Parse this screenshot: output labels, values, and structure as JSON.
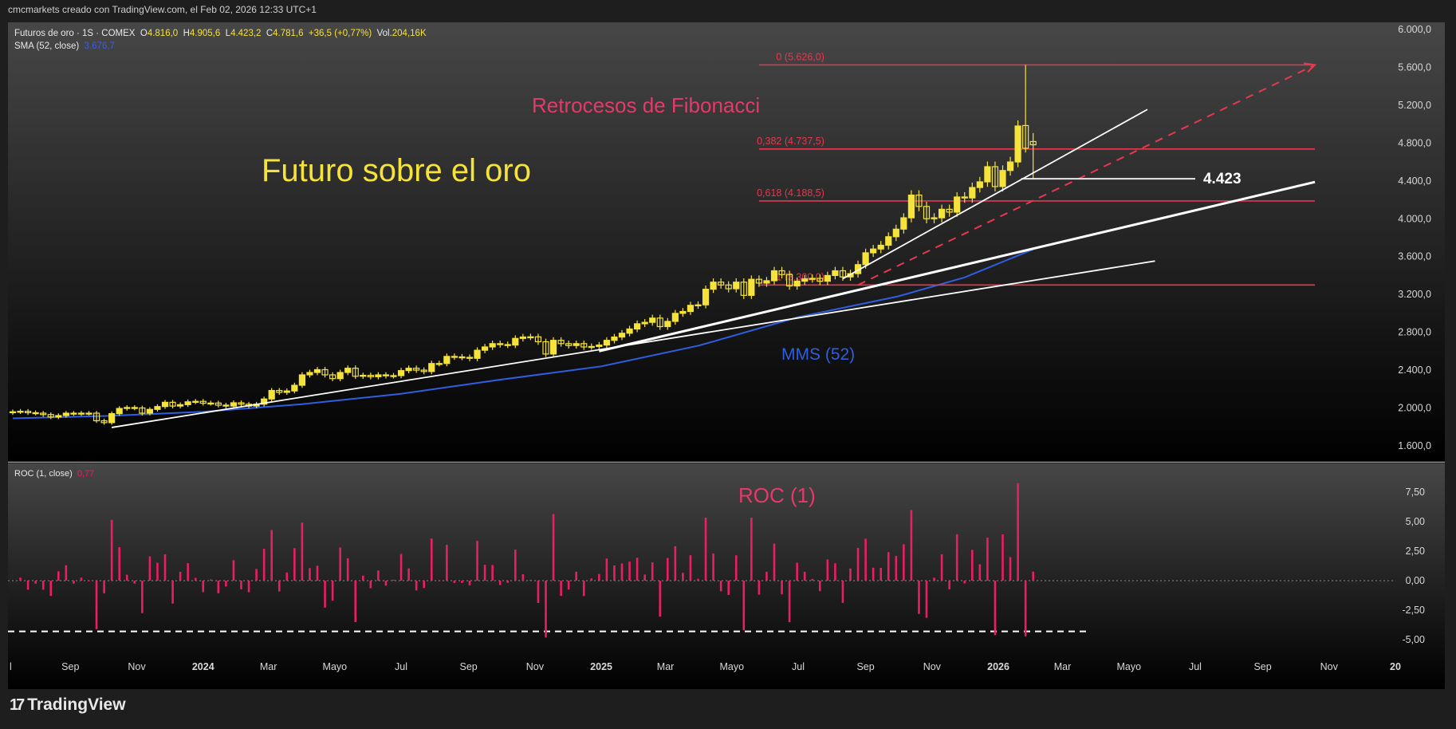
{
  "header": {
    "caption": "cmcmarkets creado con TradingView.com, el Feb 02, 2026 12:33 UTC+1"
  },
  "legend": {
    "symbol": "Futuros de oro · 1S · COMEX",
    "o_label": "O",
    "o": "4.816,0",
    "h_label": "H",
    "h": "4.905,6",
    "l_label": "L",
    "l": "4.423,2",
    "c_label": "C",
    "c": "4.781,6",
    "change": "+36,5 (+0,77%)",
    "vol_label": "Vol.",
    "vol": "204,16K",
    "sma_label": "SMA (52, close)",
    "sma_value": "3.676,7"
  },
  "roc_legend": {
    "label": "ROC (1, close)",
    "value": "0,77"
  },
  "footer": {
    "brand": "TradingView",
    "logo": "TV"
  },
  "colors": {
    "candle": "#f5e23a",
    "fib": "#e5394f",
    "sma": "#2f5fe0",
    "roc": "#e91e63",
    "trend": "#ffffff",
    "axis_text": "#d8d8d8"
  },
  "chart_data": [
    {
      "type": "candlestick",
      "title": "Futuro sobre el oro",
      "yticks": [
        "6.000,0",
        "5.600,0",
        "5.200,0",
        "4.800,0",
        "4.400,0",
        "4.000,0",
        "3.600,0",
        "3.200,0",
        "2.800,0",
        "2.400,0",
        "2.000,0",
        "1.600,0"
      ],
      "ytick_values": [
        6000,
        5600,
        5200,
        4800,
        4400,
        4000,
        3600,
        3200,
        2800,
        2400,
        2000,
        1600
      ],
      "ylim": [
        1600,
        6000
      ],
      "xticks": [
        [
          "l",
          "2023-07-01"
        ],
        [
          "Sep",
          "2023-09-01"
        ],
        [
          "Nov",
          "2023-11-01"
        ],
        [
          "2024",
          "2024-01-01"
        ],
        [
          "Mar",
          "2024-03-01"
        ],
        [
          "Mayo",
          "2024-05-01"
        ],
        [
          "Jul",
          "2024-07-01"
        ],
        [
          "Sep",
          "2024-09-01"
        ],
        [
          "Nov",
          "2024-11-01"
        ],
        [
          "2025",
          "2025-01-01"
        ],
        [
          "Mar",
          "2025-03-01"
        ],
        [
          "Mayo",
          "2025-05-01"
        ],
        [
          "Jul",
          "2025-07-01"
        ],
        [
          "Sep",
          "2025-09-01"
        ],
        [
          "Nov",
          "2025-11-01"
        ],
        [
          "2026",
          "2026-01-01"
        ],
        [
          "Mar",
          "2026-03-01"
        ],
        [
          "Mayo",
          "2026-05-01"
        ],
        [
          "Jul",
          "2026-07-01"
        ],
        [
          "Sep",
          "2026-09-01"
        ],
        [
          "Nov",
          "2026-11-01"
        ],
        [
          "20",
          "2027-01-01"
        ]
      ],
      "weekly_close": [
        [
          "2023-07-10",
          1960
        ],
        [
          "2023-07-17",
          1965
        ],
        [
          "2023-07-24",
          1950
        ],
        [
          "2023-07-31",
          1945
        ],
        [
          "2023-08-07",
          1930
        ],
        [
          "2023-08-14",
          1905
        ],
        [
          "2023-08-21",
          1920
        ],
        [
          "2023-08-28",
          1945
        ],
        [
          "2023-09-04",
          1940
        ],
        [
          "2023-09-11",
          1945
        ],
        [
          "2023-09-18",
          1945
        ],
        [
          "2023-09-25",
          1865
        ],
        [
          "2023-10-02",
          1845
        ],
        [
          "2023-10-09",
          1940
        ],
        [
          "2023-10-16",
          1995
        ],
        [
          "2023-10-23",
          2005
        ],
        [
          "2023-10-30",
          2000
        ],
        [
          "2023-11-06",
          1945
        ],
        [
          "2023-11-13",
          1985
        ],
        [
          "2023-11-20",
          2015
        ],
        [
          "2023-11-27",
          2060
        ],
        [
          "2023-12-04",
          2020
        ],
        [
          "2023-12-11",
          2035
        ],
        [
          "2023-12-18",
          2065
        ],
        [
          "2023-12-25",
          2070
        ],
        [
          "2024-01-01",
          2050
        ],
        [
          "2024-01-08",
          2052
        ],
        [
          "2024-01-15",
          2030
        ],
        [
          "2024-01-22",
          2020
        ],
        [
          "2024-01-29",
          2055
        ],
        [
          "2024-02-05",
          2040
        ],
        [
          "2024-02-12",
          2020
        ],
        [
          "2024-02-19",
          2040
        ],
        [
          "2024-02-26",
          2095
        ],
        [
          "2024-03-04",
          2185
        ],
        [
          "2024-03-11",
          2165
        ],
        [
          "2024-03-18",
          2180
        ],
        [
          "2024-03-25",
          2240
        ],
        [
          "2024-04-01",
          2350
        ],
        [
          "2024-04-08",
          2375
        ],
        [
          "2024-04-15",
          2405
        ],
        [
          "2024-04-22",
          2350
        ],
        [
          "2024-04-29",
          2310
        ],
        [
          "2024-05-06",
          2375
        ],
        [
          "2024-05-13",
          2420
        ],
        [
          "2024-05-20",
          2335
        ],
        [
          "2024-05-27",
          2345
        ],
        [
          "2024-06-03",
          2330
        ],
        [
          "2024-06-10",
          2350
        ],
        [
          "2024-06-17",
          2340
        ],
        [
          "2024-06-24",
          2342
        ],
        [
          "2024-07-01",
          2395
        ],
        [
          "2024-07-08",
          2420
        ],
        [
          "2024-07-15",
          2400
        ],
        [
          "2024-07-22",
          2385
        ],
        [
          "2024-07-29",
          2470
        ],
        [
          "2024-08-05",
          2470
        ],
        [
          "2024-08-12",
          2545
        ],
        [
          "2024-08-19",
          2540
        ],
        [
          "2024-08-26",
          2535
        ],
        [
          "2024-09-02",
          2525
        ],
        [
          "2024-09-09",
          2610
        ],
        [
          "2024-09-16",
          2645
        ],
        [
          "2024-09-23",
          2680
        ],
        [
          "2024-09-30",
          2670
        ],
        [
          "2024-10-07",
          2665
        ],
        [
          "2024-10-14",
          2735
        ],
        [
          "2024-10-21",
          2750
        ],
        [
          "2024-10-28",
          2752
        ],
        [
          "2024-11-04",
          2700
        ],
        [
          "2024-11-11",
          2570
        ],
        [
          "2024-11-18",
          2715
        ],
        [
          "2024-11-25",
          2680
        ],
        [
          "2024-12-02",
          2660
        ],
        [
          "2024-12-09",
          2680
        ],
        [
          "2024-12-16",
          2645
        ],
        [
          "2024-12-23",
          2650
        ],
        [
          "2024-12-30",
          2665
        ],
        [
          "2025-01-06",
          2715
        ],
        [
          "2025-01-13",
          2750
        ],
        [
          "2025-01-20",
          2790
        ],
        [
          "2025-01-27",
          2835
        ],
        [
          "2025-02-03",
          2890
        ],
        [
          "2025-02-10",
          2905
        ],
        [
          "2025-02-17",
          2950
        ],
        [
          "2025-02-24",
          2860
        ],
        [
          "2025-03-03",
          2915
        ],
        [
          "2025-03-10",
          3000
        ],
        [
          "2025-03-17",
          3020
        ],
        [
          "2025-03-24",
          3085
        ],
        [
          "2025-03-31",
          3090
        ],
        [
          "2025-04-07",
          3255
        ],
        [
          "2025-04-14",
          3330
        ],
        [
          "2025-04-21",
          3300
        ],
        [
          "2025-04-28",
          3260
        ],
        [
          "2025-05-05",
          3330
        ],
        [
          "2025-05-12",
          3190
        ],
        [
          "2025-05-19",
          3360
        ],
        [
          "2025-05-26",
          3320
        ],
        [
          "2025-06-02",
          3345
        ],
        [
          "2025-06-09",
          3450
        ],
        [
          "2025-06-16",
          3410
        ],
        [
          "2025-06-23",
          3290
        ],
        [
          "2025-06-30",
          3340
        ],
        [
          "2025-07-07",
          3365
        ],
        [
          "2025-07-14",
          3370
        ],
        [
          "2025-07-21",
          3340
        ],
        [
          "2025-07-28",
          3400
        ],
        [
          "2025-08-04",
          3450
        ],
        [
          "2025-08-11",
          3385
        ],
        [
          "2025-08-18",
          3420
        ],
        [
          "2025-08-25",
          3515
        ],
        [
          "2025-09-01",
          3640
        ],
        [
          "2025-09-08",
          3680
        ],
        [
          "2025-09-15",
          3720
        ],
        [
          "2025-09-22",
          3810
        ],
        [
          "2025-09-29",
          3890
        ],
        [
          "2025-10-06",
          4010
        ],
        [
          "2025-10-13",
          4250
        ],
        [
          "2025-10-20",
          4130
        ],
        [
          "2025-10-27",
          4000
        ],
        [
          "2025-11-03",
          4010
        ],
        [
          "2025-11-10",
          4100
        ],
        [
          "2025-11-17",
          4070
        ],
        [
          "2025-11-24",
          4230
        ],
        [
          "2025-12-01",
          4220
        ],
        [
          "2025-12-08",
          4330
        ],
        [
          "2025-12-15",
          4390
        ],
        [
          "2025-12-22",
          4550
        ],
        [
          "2025-12-29",
          4340
        ],
        [
          "2026-01-05",
          4510
        ],
        [
          "2026-01-12",
          4600
        ],
        [
          "2026-01-19",
          4980
        ],
        [
          "2026-01-26",
          4745.1
        ],
        [
          "2026-02-02",
          4781.6
        ]
      ],
      "last_candles_ohlc": {
        "2026-01-26": {
          "o": 4985,
          "h": 5626,
          "l": 4700,
          "c": 4745.1
        },
        "2026-02-02": {
          "o": 4816.0,
          "h": 4905.6,
          "l": 4423.2,
          "c": 4781.6
        }
      },
      "sma52": {
        "name": "MMS (52)",
        "points": [
          [
            "2023-07-10",
            1890
          ],
          [
            "2023-10-02",
            1915
          ],
          [
            "2024-01-01",
            1960
          ],
          [
            "2024-04-01",
            2040
          ],
          [
            "2024-07-01",
            2150
          ],
          [
            "2024-10-01",
            2300
          ],
          [
            "2025-01-01",
            2440
          ],
          [
            "2025-04-01",
            2660
          ],
          [
            "2025-07-01",
            2960
          ],
          [
            "2025-10-01",
            3180
          ],
          [
            "2025-12-01",
            3380
          ],
          [
            "2026-02-02",
            3676.7
          ]
        ]
      },
      "fibonacci": {
        "title": "Retrocesos de Fibonacci",
        "from": "2025-05-26",
        "to": "2026-10-19",
        "levels": [
          {
            "label": "0 (5.626,0)",
            "price": 5626
          },
          {
            "label": "0,382 (4.737,5)",
            "price": 4737.5
          },
          {
            "label": "0,618 (4.188,5)",
            "price": 4188.5
          },
          {
            "label": "1 (3.300,0)",
            "price": 3300
          }
        ]
      },
      "trendlines": [
        {
          "from": [
            "2023-10-09",
            1794
          ],
          "to": [
            "2026-05-25",
            3553
          ],
          "style": "solid-thin"
        },
        {
          "from": [
            "2024-12-30",
            2600
          ],
          "to": [
            "2026-10-19",
            4388
          ],
          "style": "solid-thick"
        },
        {
          "from": [
            "2025-08-11",
            3366
          ],
          "to": [
            "2026-05-18",
            5155
          ],
          "style": "solid-thin"
        },
        {
          "from": [
            "2025-08-25",
            3300
          ],
          "to": [
            "2026-10-19",
            5626
          ],
          "style": "dashed-red-arrow"
        }
      ],
      "horizontal_level": {
        "label": "4.423",
        "price": 4423,
        "from": "2026-01-22",
        "to": "2026-07-01"
      }
    },
    {
      "type": "bar",
      "title": "ROC (1)",
      "yticks": [
        "7,50",
        "5,00",
        "2,50",
        "0,00",
        "-2,50",
        "-5,00"
      ],
      "ytick_values": [
        7.5,
        5,
        2.5,
        0,
        -2.5,
        -5
      ],
      "ylim": [
        -6,
        8.7
      ],
      "last_value": 0.77,
      "reference_line": {
        "value": -4.3,
        "from": "2023-07-03",
        "to": "2026-03-23",
        "style": "dashed"
      },
      "zero_line": 0
    }
  ]
}
